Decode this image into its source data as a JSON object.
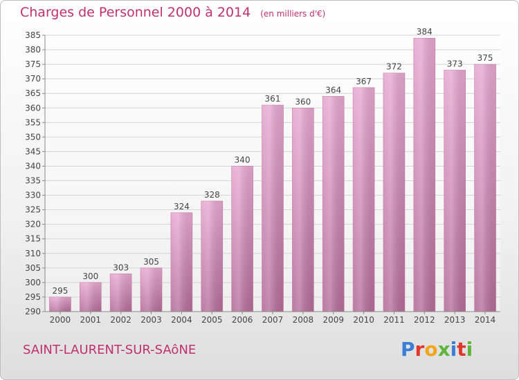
{
  "header": {
    "title": "Charges de Personnel 2000 à 2014",
    "unit_note": "(en milliers d'€)"
  },
  "footer": {
    "town": "SAINT-LAURENT-SUR-SAôNE",
    "logo_text": "Proxiti",
    "logo_colors": [
      "#3a7fd5",
      "#e0362c",
      "#f2a51a",
      "#5fb43c",
      "#3a7fd5",
      "#e0362c",
      "#5fb43c"
    ]
  },
  "chart_data": {
    "type": "bar",
    "categories": [
      "2000",
      "2001",
      "2002",
      "2003",
      "2004",
      "2005",
      "2006",
      "2007",
      "2008",
      "2009",
      "2010",
      "2011",
      "2012",
      "2013",
      "2014"
    ],
    "values": [
      295,
      300,
      303,
      305,
      324,
      328,
      340,
      361,
      360,
      364,
      367,
      372,
      384,
      373,
      375
    ],
    "title": "Charges de Personnel 2000 à 2014",
    "ylim": [
      290,
      385
    ],
    "yticks": [
      290,
      295,
      300,
      305,
      310,
      315,
      320,
      325,
      330,
      335,
      340,
      345,
      350,
      355,
      360,
      365,
      370,
      375,
      380,
      385
    ],
    "grid": true,
    "bar_color": "#d98cb8",
    "data_labels": true
  }
}
